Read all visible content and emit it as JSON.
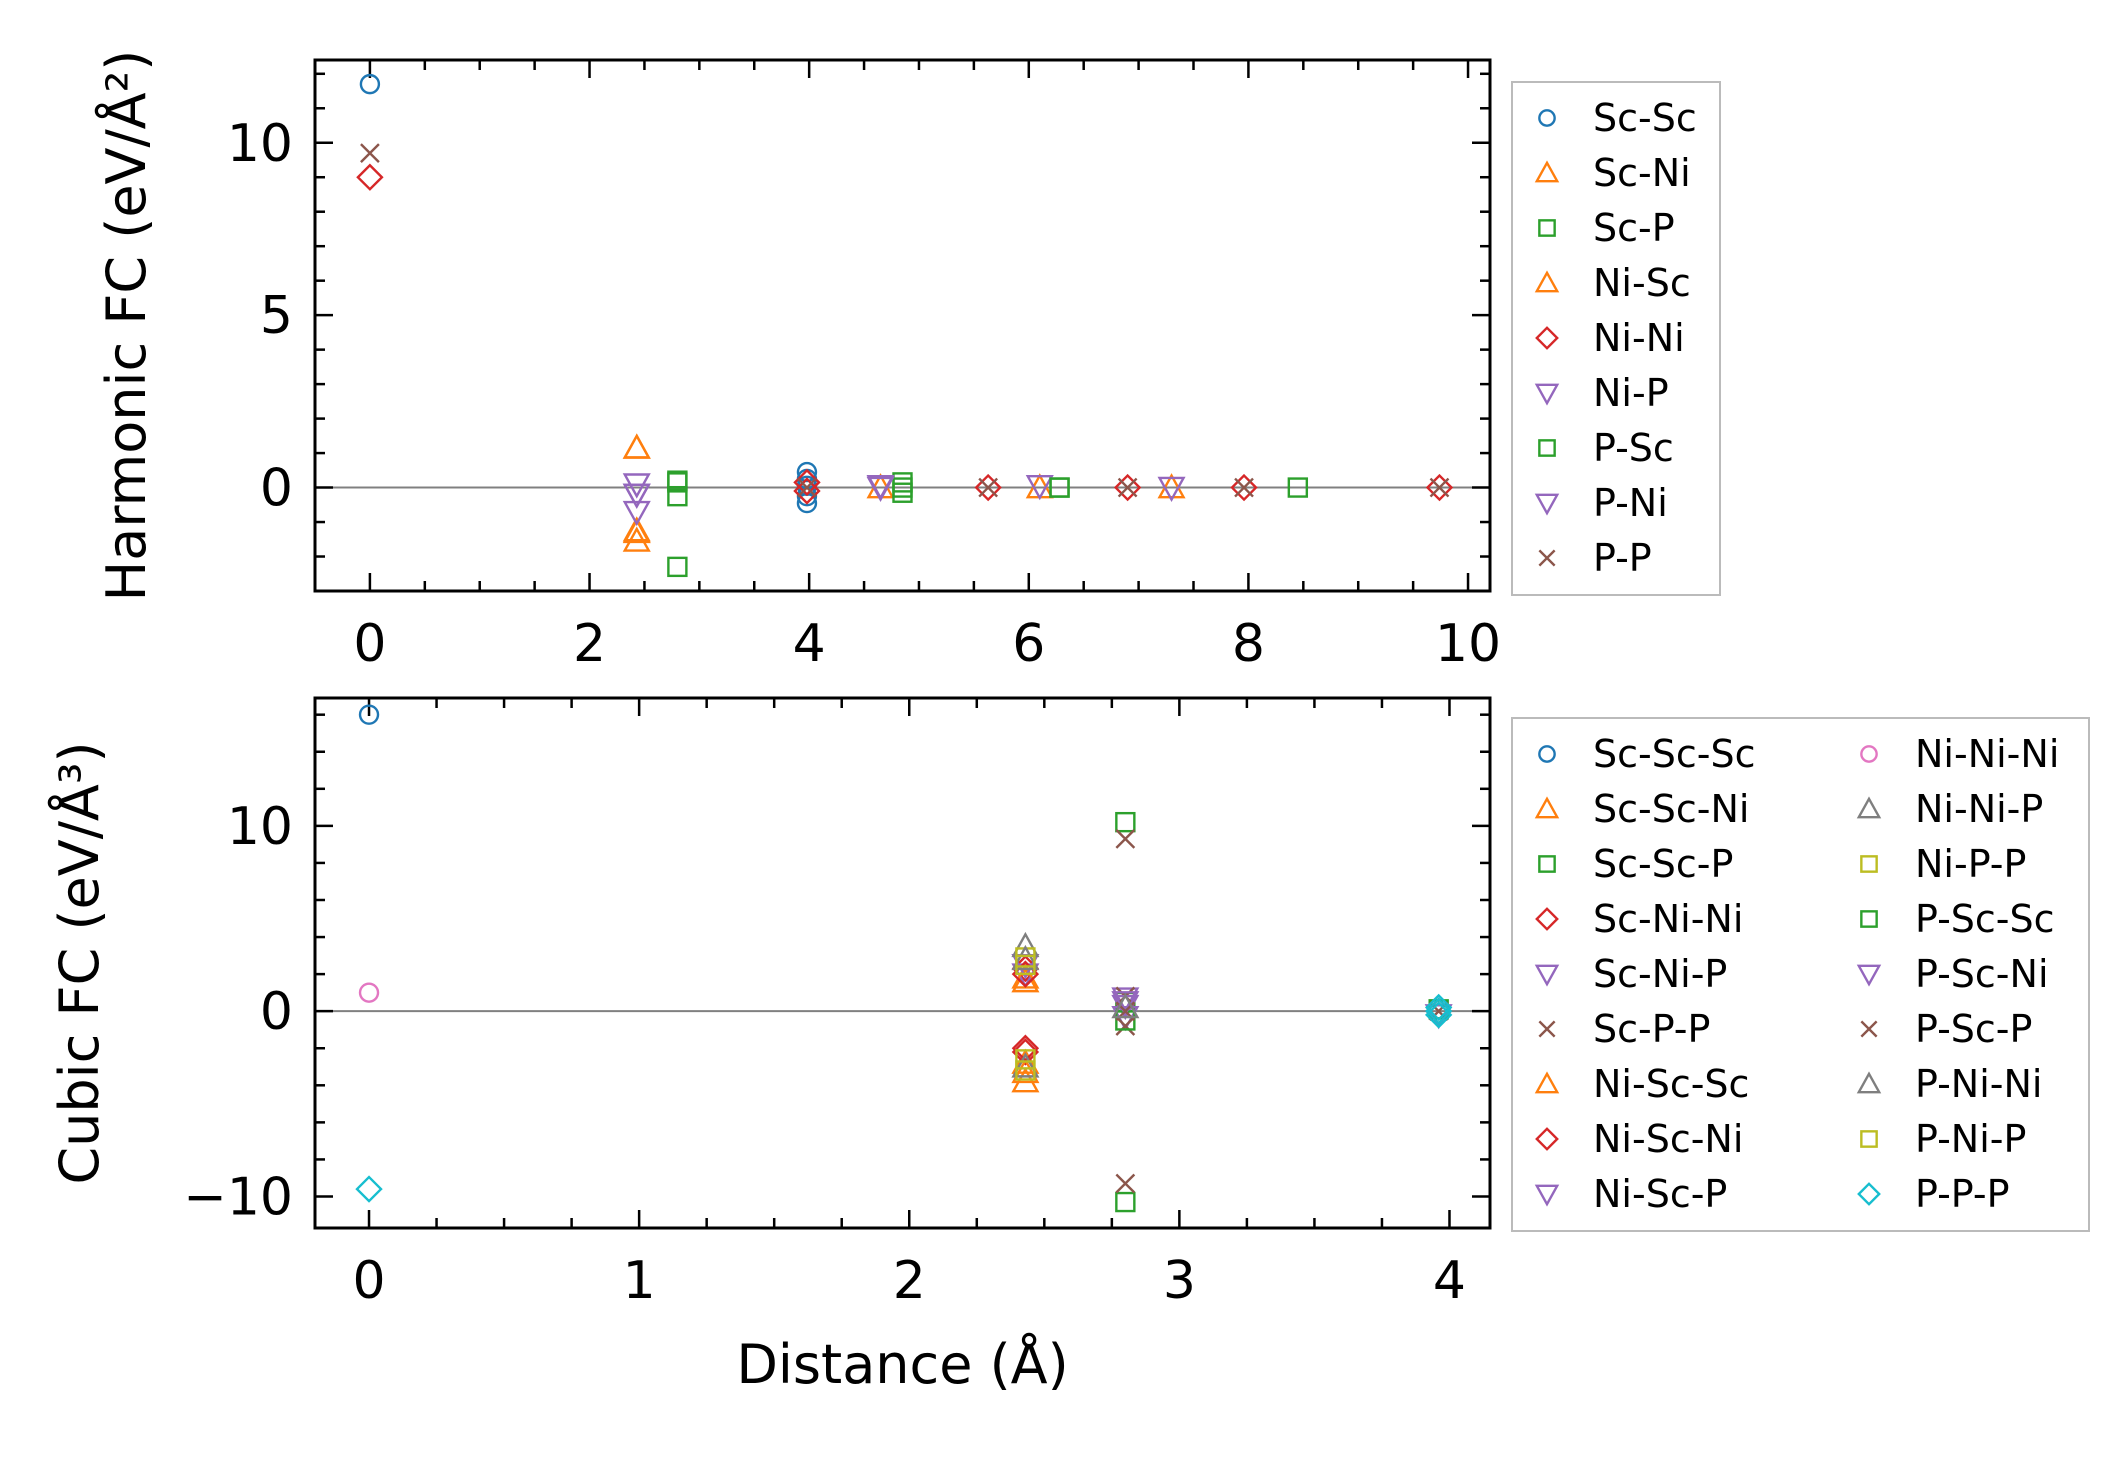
{
  "chart_data": [
    {
      "type": "scatter",
      "id": "harmonic",
      "ylabel": "Harmonic FC (eV/Å²)",
      "xlabel": "",
      "xlim": [
        -0.5,
        10.2
      ],
      "ylim": [
        -3,
        12.4
      ],
      "xticks": [
        0,
        2,
        4,
        6,
        8,
        10
      ],
      "yticks": [
        -2,
        0,
        5,
        10
      ],
      "ytick_labels": [
        {
          "v": 0,
          "t": "0"
        },
        {
          "v": 5,
          "t": "5"
        },
        {
          "v": 10,
          "t": "10"
        }
      ],
      "zero_line": true,
      "legend": {
        "placement": "right-outside",
        "columns": 1
      },
      "series": [
        {
          "name": "Sc-Sc",
          "marker": "o",
          "color": "#1f77b4",
          "points": [
            [
              0,
              11.7
            ],
            [
              3.98,
              0.45
            ],
            [
              3.98,
              0.25
            ],
            [
              3.98,
              -0.25
            ],
            [
              3.98,
              -0.45
            ],
            [
              3.98,
              0.05
            ]
          ]
        },
        {
          "name": "Sc-Ni",
          "marker": "^",
          "color": "#ff7f0e",
          "points": [
            [
              2.43,
              1.15
            ],
            [
              2.43,
              -1.25
            ],
            [
              2.43,
              -1.55
            ],
            [
              4.65,
              0.0
            ],
            [
              6.1,
              0.0
            ],
            [
              7.3,
              0.0
            ]
          ]
        },
        {
          "name": "Sc-P",
          "marker": "s",
          "color": "#2ca02c",
          "points": [
            [
              2.8,
              0.2
            ],
            [
              2.8,
              -0.25
            ],
            [
              2.8,
              -2.3
            ],
            [
              4.85,
              0.15
            ],
            [
              4.85,
              -0.15
            ],
            [
              6.28,
              0.0
            ],
            [
              8.45,
              0.0
            ]
          ]
        },
        {
          "name": "Ni-Sc",
          "marker": "^",
          "color": "#ff7f0e",
          "points": [
            [
              2.43,
              1.15
            ],
            [
              2.43,
              -1.3
            ]
          ]
        },
        {
          "name": "Ni-Ni",
          "marker": "D",
          "color": "#d62728",
          "points": [
            [
              0,
              9.0
            ],
            [
              3.98,
              0.15
            ],
            [
              3.98,
              -0.1
            ],
            [
              5.63,
              0.0
            ],
            [
              6.9,
              0.0
            ],
            [
              7.96,
              0.0
            ],
            [
              9.74,
              0.0
            ]
          ]
        },
        {
          "name": "Ni-P",
          "marker": "v",
          "color": "#9467bd",
          "points": [
            [
              2.43,
              0.1
            ],
            [
              2.43,
              -0.2
            ],
            [
              2.43,
              -0.7
            ],
            [
              4.65,
              0.05
            ],
            [
              6.1,
              0.05
            ],
            [
              7.3,
              0.0
            ]
          ]
        },
        {
          "name": "P-Sc",
          "marker": "s",
          "color": "#2ca02c",
          "points": [
            [
              2.8,
              0.15
            ],
            [
              4.85,
              0.0
            ],
            [
              6.28,
              0.0
            ]
          ]
        },
        {
          "name": "P-Ni",
          "marker": "v",
          "color": "#9467bd",
          "points": [
            [
              2.43,
              -0.2
            ],
            [
              4.65,
              0.0
            ]
          ]
        },
        {
          "name": "P-P",
          "marker": "x",
          "color": "#8c564b",
          "points": [
            [
              0,
              9.7
            ],
            [
              3.98,
              0.0
            ],
            [
              5.63,
              0.0
            ],
            [
              6.9,
              0.0
            ],
            [
              7.96,
              0.0
            ],
            [
              9.74,
              0.0
            ]
          ]
        }
      ]
    },
    {
      "type": "scatter",
      "id": "cubic",
      "ylabel": "Cubic FC (eV/Å³)",
      "xlabel": "Distance (Å)",
      "xlim": [
        -0.2,
        4.15
      ],
      "ylim": [
        -11.7,
        16.9
      ],
      "xticks": [
        0,
        1,
        2,
        3,
        4
      ],
      "yticks": [
        -10,
        0,
        10
      ],
      "ytick_labels": [
        {
          "v": -10,
          "t": "−10"
        },
        {
          "v": 0,
          "t": "0"
        },
        {
          "v": 10,
          "t": "10"
        }
      ],
      "zero_line": true,
      "legend": {
        "placement": "right-outside",
        "columns": 2
      },
      "series": [
        {
          "name": "Sc-Sc-Sc",
          "marker": "o",
          "color": "#1f77b4",
          "points": [
            [
              0,
              16.0
            ]
          ]
        },
        {
          "name": "Sc-Sc-Ni",
          "marker": "^",
          "color": "#ff7f0e",
          "points": [
            [
              2.43,
              1.6
            ],
            [
              2.43,
              -2.8
            ],
            [
              2.43,
              -3.8
            ]
          ]
        },
        {
          "name": "Sc-Sc-P",
          "marker": "s",
          "color": "#2ca02c",
          "points": [
            [
              2.8,
              10.2
            ],
            [
              2.8,
              -10.3
            ],
            [
              2.8,
              0.5
            ]
          ]
        },
        {
          "name": "Sc-Ni-Ni",
          "marker": "D",
          "color": "#d62728",
          "points": [
            [
              2.43,
              2.3
            ],
            [
              2.43,
              -2.2
            ],
            [
              3.96,
              0.0
            ]
          ]
        },
        {
          "name": "Sc-Ni-P",
          "marker": "v",
          "color": "#9467bd",
          "points": [
            [
              2.43,
              2.0
            ],
            [
              2.8,
              0.7
            ],
            [
              2.8,
              -0.3
            ]
          ]
        },
        {
          "name": "Sc-P-P",
          "marker": "x",
          "color": "#8c564b",
          "points": [
            [
              2.8,
              9.3
            ],
            [
              2.8,
              -9.3
            ],
            [
              2.8,
              0.8
            ],
            [
              2.8,
              -0.8
            ]
          ]
        },
        {
          "name": "Ni-Sc-Sc",
          "marker": "^",
          "color": "#ff7f0e",
          "points": [
            [
              2.43,
              1.8
            ],
            [
              2.43,
              -3.3
            ]
          ]
        },
        {
          "name": "Ni-Sc-Ni",
          "marker": "D",
          "color": "#d62728",
          "points": [
            [
              2.43,
              2.0
            ],
            [
              2.43,
              -2.0
            ]
          ]
        },
        {
          "name": "Ni-Sc-P",
          "marker": "v",
          "color": "#9467bd",
          "points": [
            [
              2.43,
              2.5
            ],
            [
              2.8,
              0.3
            ]
          ]
        },
        {
          "name": "Ni-Ni-Ni",
          "marker": "o",
          "color": "#e377c2",
          "points": [
            [
              0,
              1.0
            ]
          ]
        },
        {
          "name": "Ni-Ni-P",
          "marker": "^",
          "color": "#7f7f7f",
          "points": [
            [
              2.43,
              3.5
            ],
            [
              2.43,
              -3.0
            ]
          ]
        },
        {
          "name": "Ni-P-P",
          "marker": "s",
          "color": "#bcbd22",
          "points": [
            [
              2.43,
              2.9
            ],
            [
              2.43,
              -2.6
            ]
          ]
        },
        {
          "name": "P-Sc-Sc",
          "marker": "s",
          "color": "#2ca02c",
          "points": [
            [
              2.8,
              -0.5
            ],
            [
              3.96,
              0.1
            ]
          ]
        },
        {
          "name": "P-Sc-Ni",
          "marker": "v",
          "color": "#9467bd",
          "points": [
            [
              2.8,
              0.5
            ],
            [
              3.96,
              -0.2
            ]
          ]
        },
        {
          "name": "P-Sc-P",
          "marker": "x",
          "color": "#8c564b",
          "points": [
            [
              2.8,
              0.0
            ],
            [
              3.96,
              0.0
            ]
          ]
        },
        {
          "name": "P-Ni-Ni",
          "marker": "^",
          "color": "#7f7f7f",
          "points": [
            [
              2.43,
              2.8
            ],
            [
              2.8,
              0.2
            ]
          ]
        },
        {
          "name": "P-Ni-P",
          "marker": "s",
          "color": "#bcbd22",
          "points": [
            [
              2.43,
              2.5
            ],
            [
              2.43,
              -3.2
            ]
          ]
        },
        {
          "name": "P-P-P",
          "marker": "D",
          "color": "#17becf",
          "points": [
            [
              0,
              -9.6
            ],
            [
              3.96,
              0.2
            ],
            [
              3.96,
              -0.2
            ],
            [
              3.96,
              0.0
            ]
          ]
        }
      ]
    }
  ]
}
